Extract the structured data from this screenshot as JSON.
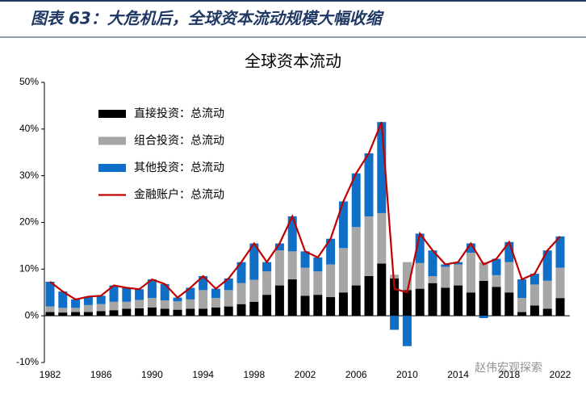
{
  "header": {
    "title": "图表 63：大危机后，全球资本流动规模大幅收缩"
  },
  "watermark": "赵伟宏观探索",
  "chart_data": {
    "type": "bar",
    "stacked": true,
    "title": "全球资本流动",
    "categories": [
      "1982",
      null,
      null,
      null,
      "1986",
      null,
      null,
      null,
      "1990",
      null,
      null,
      null,
      "1994",
      null,
      null,
      null,
      "1998",
      null,
      null,
      null,
      "2002",
      null,
      null,
      null,
      "2006",
      null,
      null,
      null,
      "2010",
      null,
      null,
      null,
      "2014",
      null,
      null,
      null,
      "2018",
      null,
      null,
      null,
      "2022"
    ],
    "series": [
      {
        "name": "直接投资：总流动",
        "color": "#000000",
        "values": [
          0.8,
          0.7,
          0.8,
          0.8,
          1.0,
          1.2,
          1.5,
          1.6,
          1.8,
          1.5,
          1.3,
          1.5,
          1.5,
          1.8,
          2.0,
          2.5,
          3.0,
          4.5,
          6.5,
          7.8,
          4.3,
          4.5,
          4.0,
          5.0,
          6.5,
          8.5,
          11.2,
          8.0,
          5.5,
          5.8,
          7.0,
          6.0,
          6.5,
          5.0,
          7.5,
          6.2,
          5.0,
          0.8,
          2.2,
          1.5,
          3.8
        ]
      },
      {
        "name": "组合投资：总流动",
        "color": "#a6a6a6",
        "values": [
          1.2,
          1.0,
          0.9,
          1.5,
          1.5,
          1.8,
          1.5,
          1.8,
          2.0,
          1.8,
          1.8,
          2.0,
          4.0,
          2.0,
          3.5,
          4.5,
          4.7,
          5.0,
          7.5,
          6.0,
          6.0,
          5.0,
          7.0,
          9.5,
          12.5,
          12.8,
          10.8,
          0.8,
          6.0,
          5.5,
          1.5,
          4.5,
          4.5,
          8.5,
          4.0,
          2.5,
          6.5,
          3.0,
          4.5,
          6.0,
          6.5
        ]
      },
      {
        "name": "其他投资：总流动",
        "color": "#0f6fc6",
        "values": [
          5.3,
          3.5,
          1.8,
          1.8,
          1.8,
          3.5,
          3.0,
          2.3,
          4.0,
          3.5,
          0.8,
          2.5,
          3.0,
          2.0,
          2.5,
          4.5,
          7.8,
          2.0,
          1.5,
          7.5,
          3.5,
          3.0,
          5.5,
          10.0,
          11.5,
          13.5,
          19.5,
          -3.0,
          -6.5,
          6.3,
          5.5,
          0.5,
          0.5,
          2.0,
          -0.5,
          3.5,
          4.3,
          4.0,
          2.3,
          6.5,
          6.7
        ]
      },
      {
        "name": "金融账户：总流动",
        "color": "#c00000",
        "type": "line",
        "values": [
          7.3,
          5.2,
          3.5,
          4.1,
          4.3,
          6.5,
          6.0,
          5.7,
          7.8,
          6.8,
          3.9,
          6.0,
          8.5,
          5.8,
          8.0,
          11.5,
          15.5,
          11.5,
          15.5,
          21.3,
          13.8,
          12.5,
          16.5,
          24.5,
          30.5,
          34.8,
          41.5,
          5.8,
          5.0,
          17.6,
          14.0,
          11.0,
          11.5,
          15.5,
          11.0,
          12.2,
          15.8,
          7.8,
          9.0,
          14.0,
          17.0
        ]
      }
    ],
    "ylim": [
      -10,
      50
    ],
    "yticks": [
      {
        "value": -10,
        "label": "-10%"
      },
      {
        "value": 0,
        "label": "0%"
      },
      {
        "value": 10,
        "label": "10%"
      },
      {
        "value": 20,
        "label": "20%"
      },
      {
        "value": 30,
        "label": "30%"
      },
      {
        "value": 40,
        "label": "40%"
      },
      {
        "value": 50,
        "label": "50%"
      }
    ],
    "legend": "upper left"
  }
}
